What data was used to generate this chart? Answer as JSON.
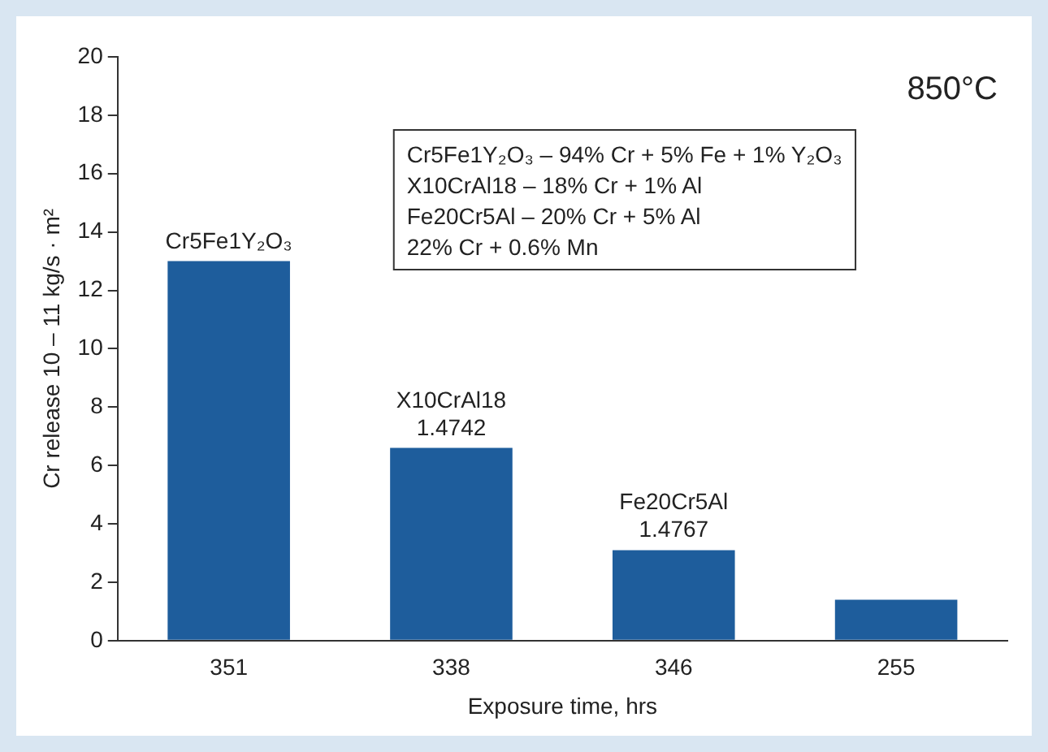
{
  "chart_data": {
    "type": "bar",
    "ylabel": "Cr release 10 – 11 kg/s · m²",
    "xlabel": "Exposure time, hrs",
    "categories": [
      "351",
      "338",
      "346",
      "255"
    ],
    "values": [
      13,
      6.6,
      3.1,
      1.4
    ],
    "color": "#1e5d9c",
    "ylim": [
      0,
      20
    ],
    "yticks": [
      0,
      2,
      4,
      6,
      8,
      10,
      12,
      14,
      16,
      18,
      20
    ],
    "grid": false,
    "annotations": [
      "850°C",
      "Cr5Fe1Y₂O₃ – 94% Cr + 5% Fe + 1% Y₂O₃",
      "X10CrAl18 – 18% Cr + 1% Al",
      "Fe20Cr5Al – 20% Cr + 5% Al",
      "22% Cr + 0.6% Mn",
      {
        "text": "Cr5Fe1Y₂O₃",
        "x": "351",
        "y": 13
      },
      {
        "text": "X10CrAl18\n1.4742",
        "x": "338",
        "y": 6.6
      },
      {
        "text": "Fe20Cr5Al\n1.4767",
        "x": "346",
        "y": 3.1
      }
    ]
  }
}
